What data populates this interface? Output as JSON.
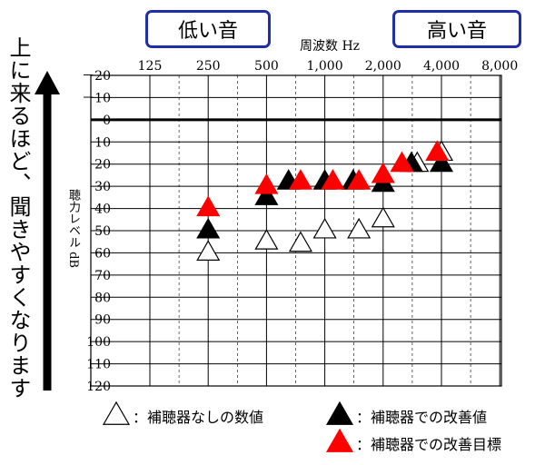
{
  "labels": {
    "low": "低い音",
    "high": "高い音",
    "freq_unit": "周波数 Hz",
    "side_caption": "上に来るほど、聞きやすくなります",
    "y_label": "聴力レベル dB"
  },
  "legend": [
    {
      "symbol": "open-triangle",
      "text": "：補聴器なしの数値"
    },
    {
      "symbol": "black-triangle",
      "text": "：補聴器での改善値"
    },
    {
      "symbol": "red-triangle",
      "text": "：補聴器での改善目標"
    }
  ],
  "colors": {
    "accent_box": "#1f2fa8",
    "target": "#ff0000",
    "improved": "#000000"
  },
  "chart_data": {
    "type": "scatter",
    "x_ticks": [
      "125",
      "250",
      "500",
      "1,000",
      "2,000",
      "4,000",
      "8,000"
    ],
    "x_scale": "log2",
    "y_ticks": [
      "－20",
      "－10",
      "0",
      "10",
      "20",
      "30",
      "40",
      "50",
      "60",
      "70",
      "80",
      "90",
      "100",
      "110",
      "120"
    ],
    "ylim": [
      -20,
      120
    ],
    "y_inverted": true,
    "series": [
      {
        "name": "補聴器なしの数値",
        "marker": "open-triangle",
        "points": [
          [
            250,
            60
          ],
          [
            500,
            55
          ],
          [
            750,
            56
          ],
          [
            1000,
            50
          ],
          [
            1500,
            50
          ],
          [
            2000,
            45
          ],
          [
            3000,
            20
          ],
          [
            4000,
            15
          ]
        ]
      },
      {
        "name": "補聴器での改善値",
        "marker": "black-triangle",
        "points": [
          [
            250,
            50
          ],
          [
            500,
            35
          ],
          [
            650,
            28
          ],
          [
            1000,
            28
          ],
          [
            1400,
            28
          ],
          [
            2000,
            29
          ],
          [
            2800,
            20
          ],
          [
            4000,
            20
          ]
        ]
      },
      {
        "name": "補聴器での改善目標",
        "marker": "red-triangle",
        "points": [
          [
            250,
            40
          ],
          [
            500,
            30
          ],
          [
            750,
            28
          ],
          [
            1100,
            28
          ],
          [
            1500,
            28
          ],
          [
            2000,
            25
          ],
          [
            2500,
            20
          ],
          [
            3800,
            15
          ]
        ]
      }
    ]
  }
}
